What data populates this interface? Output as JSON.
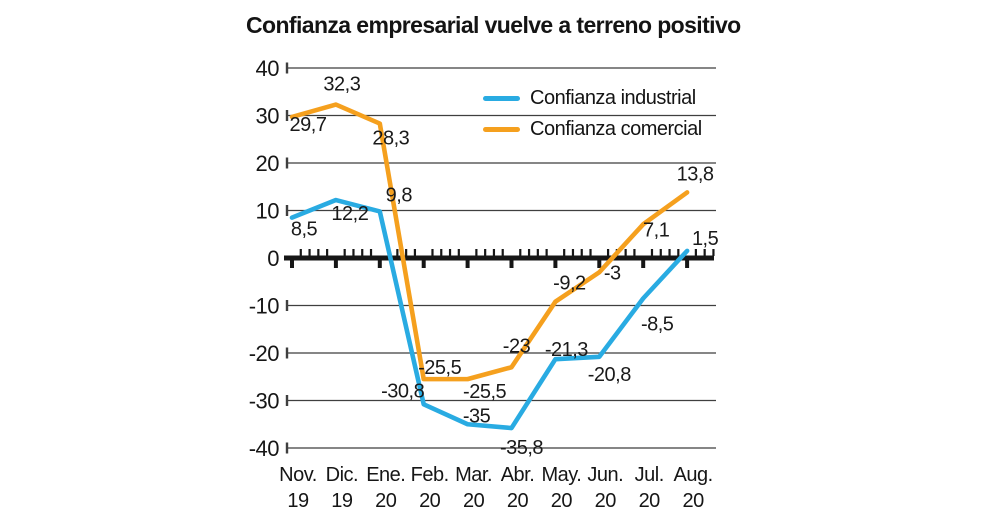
{
  "chart_data": {
    "type": "line",
    "title": "Confianza empresarial vuelve a terreno positivo",
    "categories": [
      {
        "month": "Nov.",
        "year": "19"
      },
      {
        "month": "Dic.",
        "year": "19"
      },
      {
        "month": "Ene.",
        "year": "20"
      },
      {
        "month": "Feb.",
        "year": "20"
      },
      {
        "month": "Mar.",
        "year": "20"
      },
      {
        "month": "Abr.",
        "year": "20"
      },
      {
        "month": "May.",
        "year": "20"
      },
      {
        "month": "Jun.",
        "year": "20"
      },
      {
        "month": "Jul.",
        "year": "20"
      },
      {
        "month": "Aug.",
        "year": "20"
      }
    ],
    "series": [
      {
        "name": "Confianza industrial",
        "color": "#29abe2",
        "values": [
          8.5,
          12.2,
          9.8,
          -30.8,
          -35,
          -35.8,
          -21.3,
          -20.8,
          -8.5,
          1.5
        ],
        "point_labels": [
          "8,5",
          "12,2",
          "9,8",
          "-30,8",
          "-35",
          "-35,8",
          "-21,3",
          "-20,8",
          "-8,5",
          "1,5"
        ],
        "label_offsets": [
          [
            12,
            11
          ],
          [
            14,
            13
          ],
          [
            19,
            -17
          ],
          [
            -21,
            -14
          ],
          [
            9,
            -9
          ],
          [
            10,
            19
          ],
          [
            11,
            -10
          ],
          [
            10,
            17
          ],
          [
            14,
            25
          ],
          [
            18,
            -13
          ]
        ]
      },
      {
        "name": "Confianza comercial",
        "color": "#f5a01e",
        "values": [
          29.7,
          32.3,
          28.3,
          -25.5,
          -25.5,
          -23,
          -9.2,
          -3,
          7.1,
          13.8
        ],
        "point_labels": [
          "29,7",
          "32,3",
          "28,3",
          "-25,5",
          "-25,5",
          "-23",
          "-9,2",
          "-3",
          "7,1",
          "13,8"
        ],
        "label_offsets": [
          [
            16,
            7
          ],
          [
            6,
            -21
          ],
          [
            11,
            14
          ],
          [
            16,
            -12
          ],
          [
            17,
            12
          ],
          [
            5,
            -22
          ],
          [
            14,
            -19
          ],
          [
            13,
            0
          ],
          [
            13,
            5
          ],
          [
            8,
            -19
          ]
        ]
      }
    ],
    "y_axis": {
      "min": -40,
      "max": 40,
      "step": 10,
      "tick_labels": [
        "40",
        "30",
        "20",
        "10",
        "0",
        "-10",
        "-20",
        "-30",
        "-40"
      ]
    },
    "grid": true,
    "legend_position": "inside-top-right",
    "decimal_separator": ","
  },
  "colors": {
    "background": "#ffffff",
    "grid": "#3f3f3f",
    "axis": "#161616",
    "text": "#141414"
  }
}
